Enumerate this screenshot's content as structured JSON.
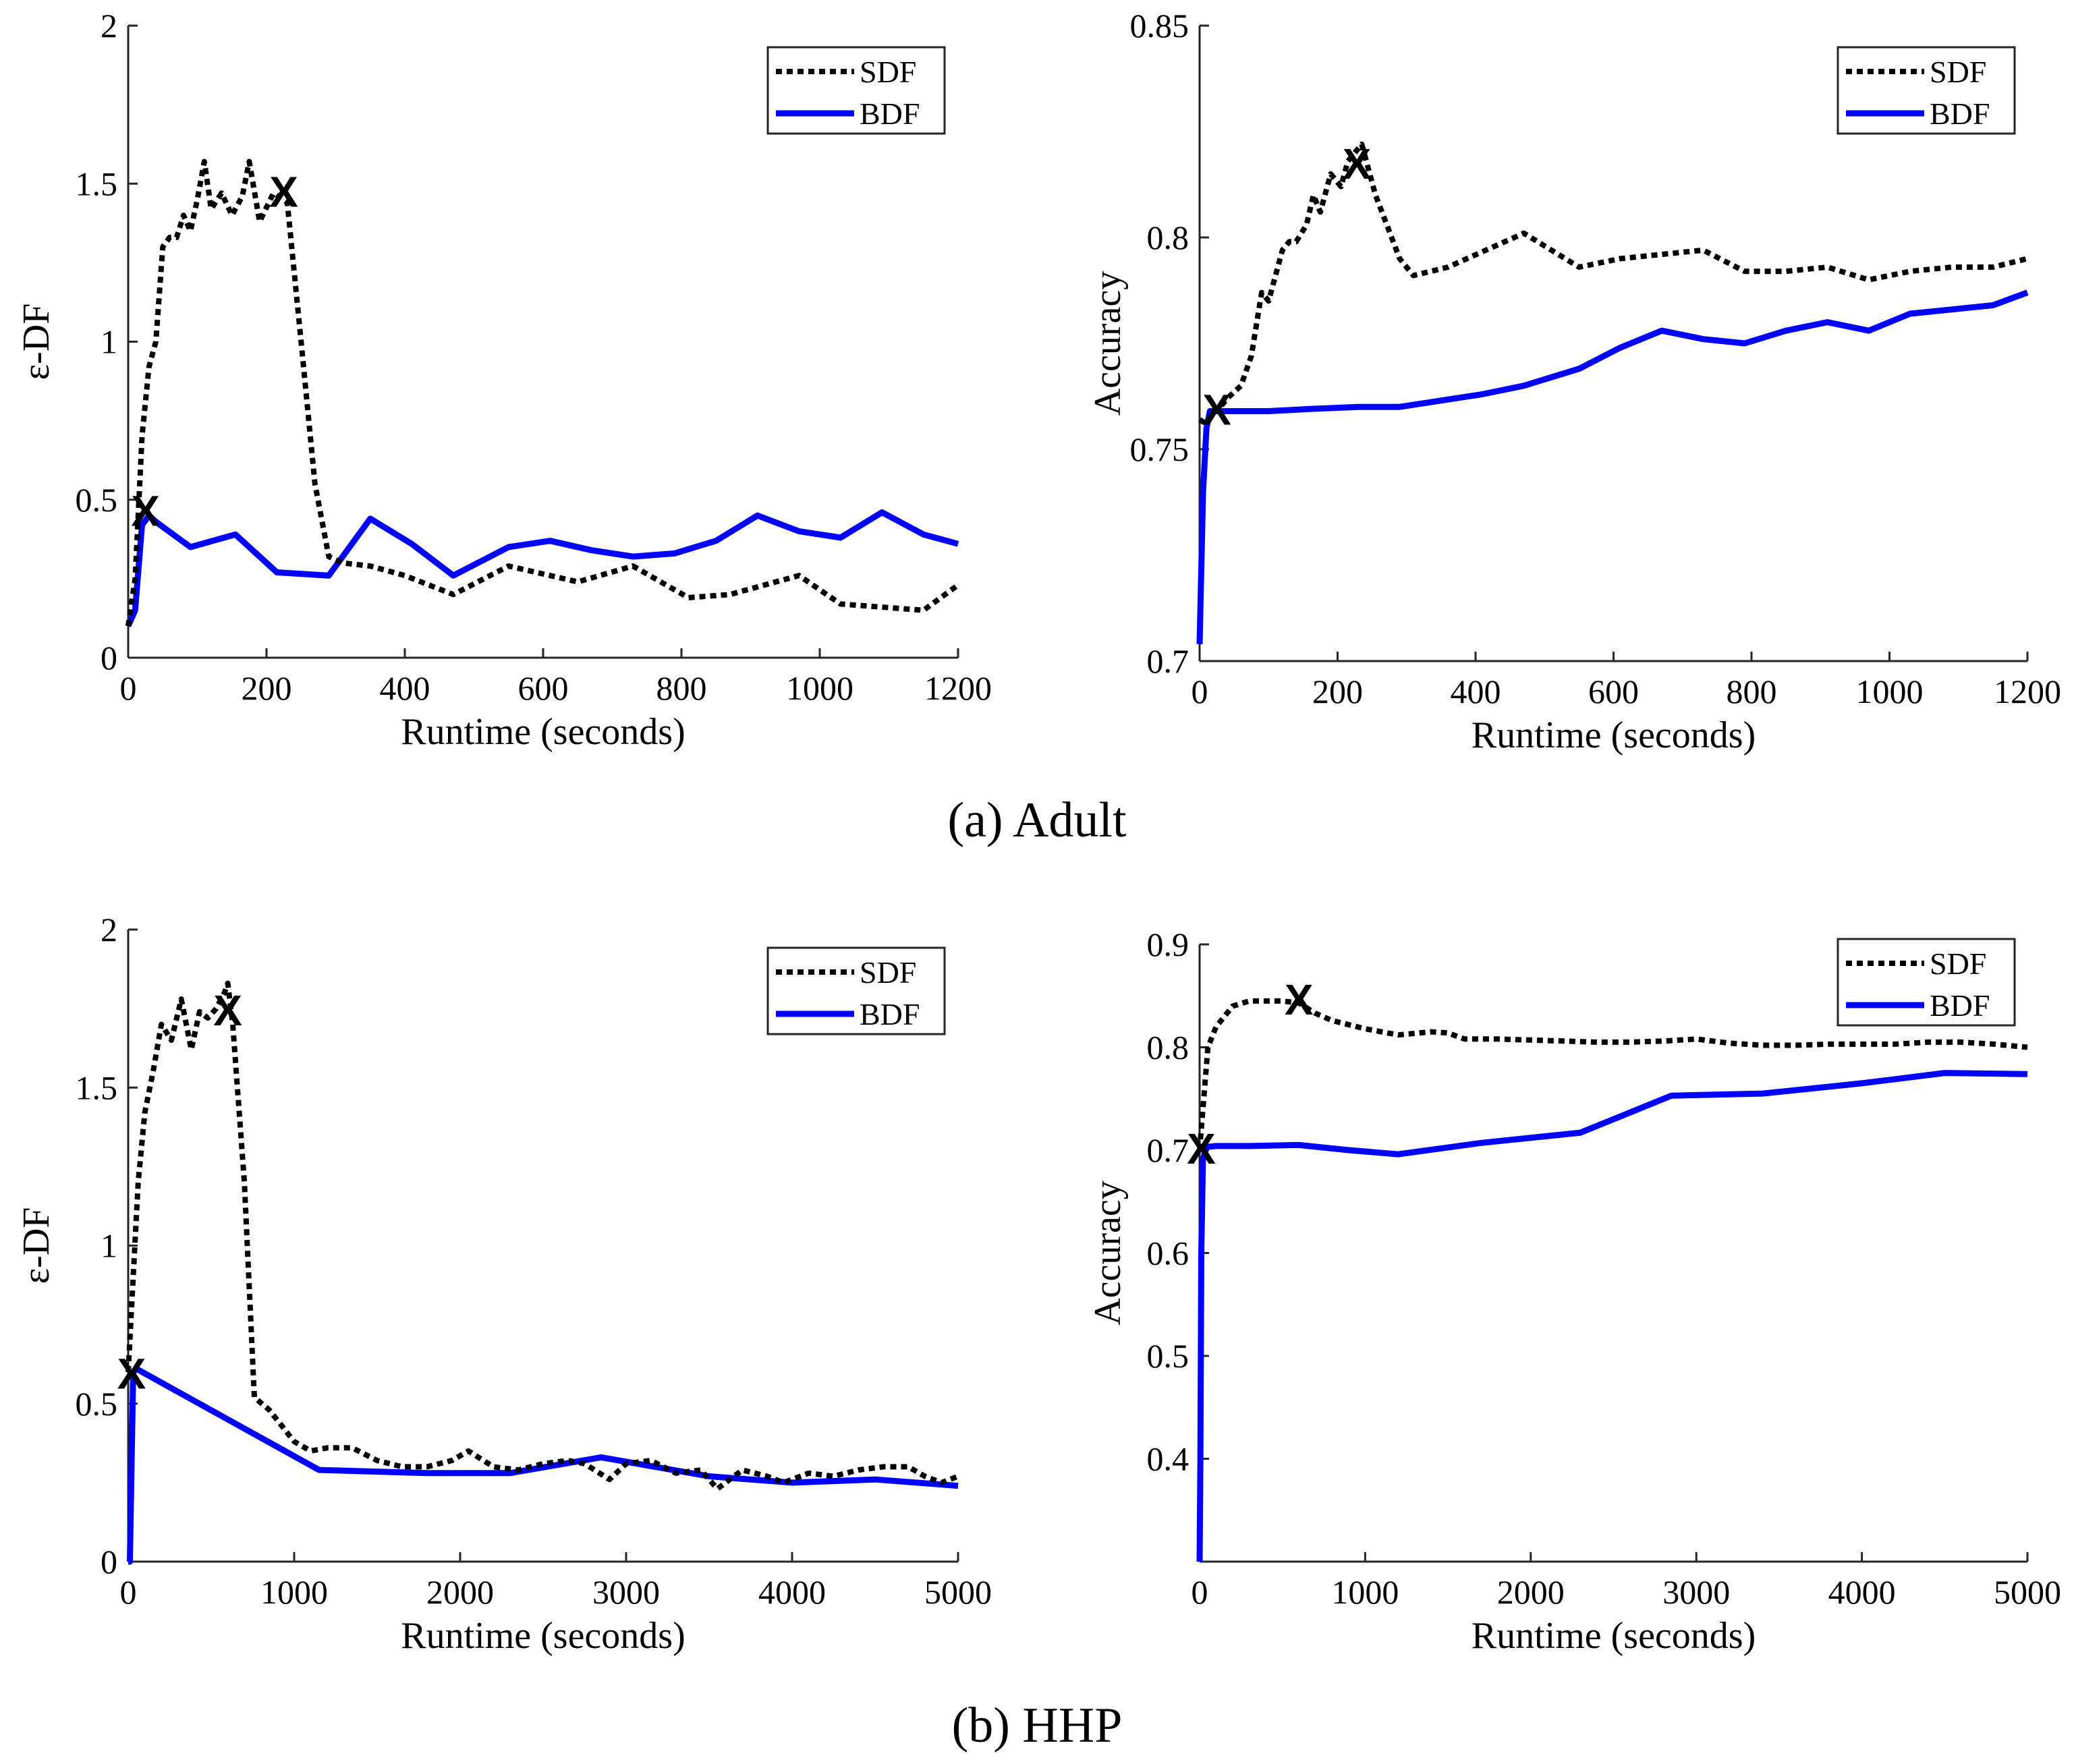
{
  "captions": {
    "top": "(a) Adult",
    "bottom": "(b) HHP"
  },
  "colors": {
    "sdf": "#000000",
    "bdf": "#0000ff",
    "marker": "#ff0000"
  },
  "chart_data": [
    {
      "id": "adult-edf",
      "type": "line",
      "xlabel": "Runtime (seconds)",
      "ylabel": "ε-DF",
      "xlim": [
        0,
        1200
      ],
      "ylim": [
        0,
        2
      ],
      "xticks": [
        0,
        200,
        400,
        600,
        800,
        1000,
        1200
      ],
      "yticks": [
        0,
        0.5,
        1,
        1.5,
        2
      ],
      "ytick_labels": [
        "0",
        "0.5",
        "1",
        "1.5",
        "2"
      ],
      "legend": "top-right",
      "series": [
        {
          "name": "SDF",
          "style": "dotted",
          "x": [
            0,
            10,
            20,
            30,
            40,
            50,
            60,
            70,
            80,
            90,
            100,
            110,
            120,
            135,
            150,
            165,
            175,
            190,
            210,
            230,
            250,
            270,
            290,
            310,
            350,
            400,
            470,
            550,
            650,
            730,
            810,
            870,
            970,
            1030,
            1090,
            1150,
            1200
          ],
          "y": [
            0.1,
            0.25,
            0.7,
            0.92,
            1.0,
            1.3,
            1.33,
            1.33,
            1.4,
            1.35,
            1.45,
            1.57,
            1.42,
            1.47,
            1.4,
            1.46,
            1.57,
            1.38,
            1.47,
            1.44,
            1.0,
            0.55,
            0.32,
            0.3,
            0.29,
            0.26,
            0.2,
            0.29,
            0.24,
            0.29,
            0.19,
            0.2,
            0.26,
            0.17,
            0.16,
            0.15,
            0.23
          ]
        },
        {
          "name": "BDF",
          "style": "solid",
          "x": [
            0,
            10,
            20,
            30,
            40,
            90,
            155,
            215,
            290,
            350,
            410,
            470,
            550,
            610,
            670,
            730,
            790,
            850,
            910,
            970,
            1030,
            1090,
            1150,
            1200
          ],
          "y": [
            0.1,
            0.15,
            0.42,
            0.45,
            0.43,
            0.35,
            0.39,
            0.27,
            0.26,
            0.44,
            0.36,
            0.26,
            0.35,
            0.37,
            0.34,
            0.32,
            0.33,
            0.37,
            0.45,
            0.4,
            0.38,
            0.46,
            0.39,
            0.36
          ]
        }
      ],
      "markers": [
        {
          "label": "X",
          "x": 25,
          "y": 0.46
        },
        {
          "label": "X",
          "x": 225,
          "y": 1.47
        }
      ]
    },
    {
      "id": "adult-accuracy",
      "type": "line",
      "xlabel": "Runtime (seconds)",
      "ylabel": "Accuracy",
      "xlim": [
        0,
        1200
      ],
      "ylim": [
        0.7,
        0.85
      ],
      "xticks": [
        0,
        200,
        400,
        600,
        800,
        1000,
        1200
      ],
      "yticks": [
        0.7,
        0.75,
        0.8,
        0.85
      ],
      "ytick_labels": [
        "0.7",
        "0.75",
        "0.8",
        "0.85"
      ],
      "legend": "top-right",
      "series": [
        {
          "name": "SDF",
          "style": "dotted",
          "x": [
            0,
            10,
            20,
            30,
            40,
            60,
            75,
            90,
            100,
            120,
            130,
            140,
            155,
            165,
            175,
            190,
            205,
            215,
            235,
            255,
            290,
            310,
            360,
            470,
            550,
            610,
            670,
            730,
            790,
            850,
            910,
            970,
            1030,
            1090,
            1150,
            1200
          ],
          "y": [
            0.757,
            0.756,
            0.759,
            0.76,
            0.762,
            0.765,
            0.772,
            0.787,
            0.785,
            0.797,
            0.799,
            0.799,
            0.803,
            0.81,
            0.806,
            0.815,
            0.812,
            0.818,
            0.822,
            0.81,
            0.795,
            0.791,
            0.793,
            0.801,
            0.793,
            0.795,
            0.796,
            0.797,
            0.792,
            0.792,
            0.793,
            0.79,
            0.792,
            0.793,
            0.793,
            0.795
          ]
        },
        {
          "name": "BDF",
          "style": "solid",
          "x": [
            0,
            5,
            10,
            15,
            25,
            50,
            100,
            160,
            230,
            290,
            350,
            410,
            470,
            550,
            610,
            670,
            730,
            790,
            850,
            910,
            970,
            1030,
            1090,
            1150,
            1200
          ],
          "y": [
            0.704,
            0.74,
            0.755,
            0.759,
            0.759,
            0.759,
            0.759,
            0.7595,
            0.76,
            0.76,
            0.7615,
            0.763,
            0.765,
            0.769,
            0.774,
            0.778,
            0.776,
            0.775,
            0.778,
            0.78,
            0.778,
            0.782,
            0.783,
            0.784,
            0.787
          ]
        }
      ],
      "markers": [
        {
          "label": "X",
          "x": 25,
          "y": 0.759
        },
        {
          "label": "X",
          "x": 228,
          "y": 0.817
        }
      ]
    },
    {
      "id": "hhp-edf",
      "type": "line",
      "xlabel": "Runtime (seconds)",
      "ylabel": "ε-DF",
      "xlim": [
        0,
        5000
      ],
      "ylim": [
        0,
        2
      ],
      "xticks": [
        0,
        1000,
        2000,
        3000,
        4000,
        5000
      ],
      "yticks": [
        0,
        0.5,
        1,
        1.5,
        2
      ],
      "ytick_labels": [
        "0",
        "0.5",
        "1",
        "1.5",
        "2"
      ],
      "legend": "top-right",
      "series": [
        {
          "name": "SDF",
          "style": "dotted",
          "x": [
            0,
            30,
            60,
            100,
            150,
            200,
            260,
            320,
            380,
            430,
            480,
            530,
            580,
            600,
            630,
            700,
            760,
            850,
            1000,
            1100,
            1200,
            1350,
            1500,
            1650,
            1800,
            1950,
            2050,
            2200,
            2350,
            2500,
            2650,
            2750,
            2900,
            3000,
            3150,
            3300,
            3450,
            3550,
            3700,
            3850,
            3950,
            4100,
            4250,
            4400,
            4550,
            4700,
            4800,
            4900,
            5000
          ],
          "y": [
            0.6,
            0.9,
            1.2,
            1.42,
            1.55,
            1.7,
            1.65,
            1.78,
            1.62,
            1.74,
            1.72,
            1.75,
            1.8,
            1.83,
            1.7,
            1.2,
            0.52,
            0.48,
            0.38,
            0.35,
            0.36,
            0.36,
            0.32,
            0.3,
            0.3,
            0.32,
            0.35,
            0.3,
            0.29,
            0.31,
            0.32,
            0.31,
            0.26,
            0.31,
            0.32,
            0.28,
            0.29,
            0.23,
            0.29,
            0.27,
            0.25,
            0.28,
            0.27,
            0.29,
            0.3,
            0.3,
            0.27,
            0.25,
            0.27
          ]
        },
        {
          "name": "BDF",
          "style": "solid",
          "x": [
            0,
            10,
            30,
            50,
            1150,
            1800,
            2300,
            2850,
            3500,
            4000,
            4500,
            5000
          ],
          "y": [
            0.0,
            0.0,
            0.6,
            0.61,
            0.29,
            0.28,
            0.28,
            0.33,
            0.27,
            0.25,
            0.26,
            0.24
          ]
        }
      ],
      "markers": [
        {
          "label": "X",
          "x": 20,
          "y": 0.59
        },
        {
          "label": "X",
          "x": 600,
          "y": 1.74
        }
      ]
    },
    {
      "id": "hhp-accuracy",
      "type": "line",
      "xlabel": "Runtime (seconds)",
      "ylabel": "Accuracy",
      "xlim": [
        0,
        5000
      ],
      "ylim": [
        0.3,
        0.9
      ],
      "xticks": [
        0,
        1000,
        2000,
        3000,
        4000,
        5000
      ],
      "yticks": [
        0.4,
        0.5,
        0.6,
        0.7,
        0.8,
        0.9
      ],
      "ytick_labels": [
        "0.4",
        "0.5",
        "0.6",
        "0.7",
        "0.8",
        "0.9"
      ],
      "legend": "top-right",
      "series": [
        {
          "name": "SDF",
          "style": "dotted",
          "x": [
            0,
            50,
            100,
            200,
            300,
            400,
            500,
            600,
            700,
            800,
            900,
            1000,
            1200,
            1400,
            1500,
            1600,
            1800,
            2000,
            2200,
            2400,
            2600,
            2800,
            3000,
            3200,
            3400,
            3600,
            3800,
            4000,
            4200,
            4400,
            4600,
            4800,
            5000
          ],
          "y": [
            0.7,
            0.8,
            0.82,
            0.84,
            0.845,
            0.845,
            0.845,
            0.843,
            0.833,
            0.826,
            0.822,
            0.818,
            0.812,
            0.815,
            0.814,
            0.808,
            0.808,
            0.807,
            0.806,
            0.805,
            0.805,
            0.806,
            0.808,
            0.804,
            0.802,
            0.802,
            0.803,
            0.803,
            0.803,
            0.805,
            0.805,
            0.803,
            0.8
          ]
        },
        {
          "name": "BDF",
          "style": "solid",
          "x": [
            0,
            5,
            10,
            20,
            40,
            100,
            300,
            600,
            900,
            1200,
            1700,
            2300,
            2850,
            3400,
            4000,
            4500,
            5000
          ],
          "y": [
            0.3,
            0.4,
            0.6,
            0.69,
            0.703,
            0.704,
            0.704,
            0.705,
            0.7,
            0.696,
            0.707,
            0.717,
            0.753,
            0.755,
            0.765,
            0.775,
            0.774
          ]
        }
      ],
      "markers": [
        {
          "label": "X",
          "x": 10,
          "y": 0.7
        },
        {
          "label": "X",
          "x": 600,
          "y": 0.845
        }
      ]
    }
  ]
}
